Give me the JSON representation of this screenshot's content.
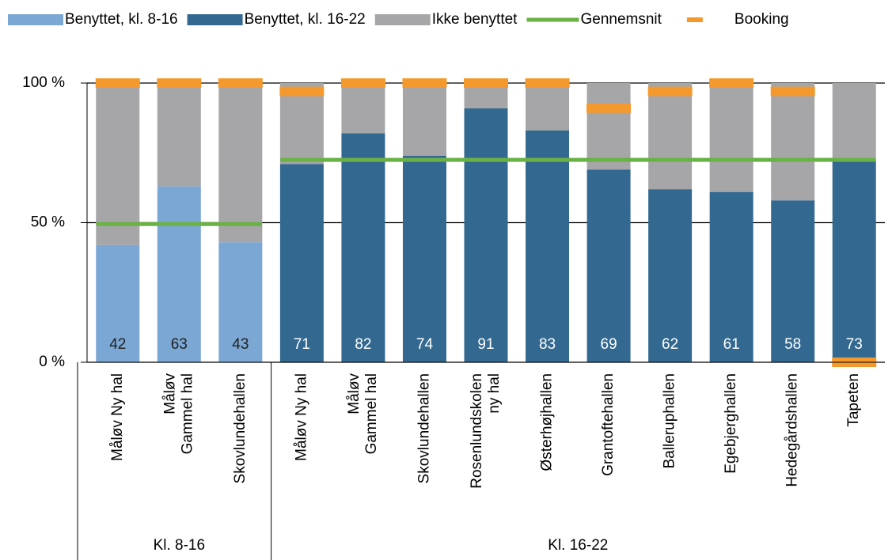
{
  "chart_data": {
    "type": "bar",
    "stacked": true,
    "categories": [
      [
        "Måløv Ny hal"
      ],
      [
        "Måløv",
        "Gammel hal"
      ],
      [
        "Skovlundehallen"
      ],
      [
        "Måløv Ny hal"
      ],
      [
        "Måløv",
        "Gammel hal"
      ],
      [
        "Skovlundehallen"
      ],
      [
        "Rosenlundskolen",
        "ny hal"
      ],
      [
        "Østerhøjhallen"
      ],
      [
        "Grantoftehallen"
      ],
      [
        "Balleruphallen"
      ],
      [
        "Egebjerghallen"
      ],
      [
        "Hedegårdshallen"
      ],
      [
        "Tapeten"
      ]
    ],
    "groups": [
      "Kl. 8-16",
      "Kl. 16-22"
    ],
    "series": [
      {
        "name": "Benyttet, kl. 8-16",
        "type": "bar",
        "color": "#7ba7d4",
        "label_color": "#222222",
        "values": [
          42,
          63,
          43,
          null,
          null,
          null,
          null,
          null,
          null,
          null,
          null,
          null,
          null
        ]
      },
      {
        "name": "Benyttet, kl. 16-22",
        "type": "bar",
        "color": "#336990",
        "label_color": "#ffffff",
        "values": [
          null,
          null,
          null,
          71,
          82,
          74,
          91,
          83,
          69,
          62,
          61,
          58,
          73
        ]
      },
      {
        "name": "Ikke benyttet",
        "type": "bar",
        "color": "#a6a6a9",
        "values": [
          58,
          37,
          57,
          29,
          18,
          26,
          9,
          17,
          31,
          38,
          39,
          42,
          27
        ]
      },
      {
        "name": "Gennemsnit",
        "type": "line",
        "color": "#6ab245",
        "values": [
          49.5,
          49.5,
          49.5,
          72.5,
          72.5,
          72.5,
          72.5,
          72.5,
          72.5,
          72.5,
          72.5,
          72.5,
          72.5
        ]
      },
      {
        "name": "Booking",
        "type": "marker",
        "color": "#f4992d",
        "values": [
          100,
          100,
          100,
          97,
          100,
          100,
          100,
          100,
          91,
          97,
          100,
          97,
          0
        ]
      }
    ],
    "ylim": [
      0,
      100
    ],
    "yticks": [
      {
        "value": 0,
        "label": "0 %"
      },
      {
        "value": 50,
        "label": "50 %"
      },
      {
        "value": 100,
        "label": "100 %"
      }
    ],
    "grid": true
  }
}
